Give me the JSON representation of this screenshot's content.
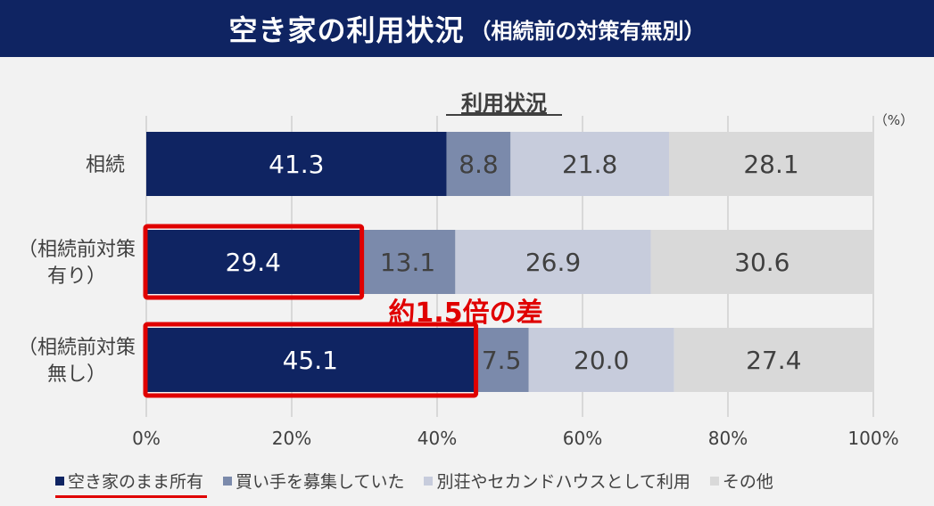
{
  "header": {
    "title": "空き家の利用状況",
    "subtitle": "（相続前の対策有無別）"
  },
  "chart_data": {
    "type": "bar",
    "orientation": "horizontal-stacked-100",
    "title": "利用状況",
    "unit_label": "（%）",
    "categories": [
      [
        "相続"
      ],
      [
        "（相続前対策",
        "有り）"
      ],
      [
        "（相続前対策",
        "無し）"
      ]
    ],
    "series": [
      {
        "name": "空き家のまま所有",
        "color": "#0f2462",
        "values": [
          41.3,
          29.4,
          45.1
        ],
        "labels": [
          "41.3",
          "29.4",
          "45.1"
        ],
        "label_color": "#ffffff"
      },
      {
        "name": "買い手を募集していた",
        "color": "#7b8aab",
        "values": [
          8.8,
          13.1,
          7.5
        ],
        "labels": [
          "8.8",
          "13.1",
          "7.5"
        ],
        "label_color": "#404040"
      },
      {
        "name": "別荘やセカンドハウスとして利用",
        "color": "#c7ccdc",
        "values": [
          21.8,
          26.9,
          20.0
        ],
        "labels": [
          "21.8",
          "26.9",
          "20.0"
        ],
        "label_color": "#404040"
      },
      {
        "name": "その他",
        "color": "#d9d9d9",
        "values": [
          28.1,
          30.6,
          27.4
        ],
        "labels": [
          "28.1",
          "30.6",
          "27.4"
        ],
        "label_color": "#404040"
      }
    ],
    "xlim": [
      0,
      100
    ],
    "x_ticks": [
      "0%",
      "20%",
      "40%",
      "60%",
      "80%",
      "100%"
    ],
    "grid": true,
    "legend_position": "bottom",
    "annotation": {
      "text": "約1.5倍の差",
      "color": "#e00000",
      "highlighted_series": "空き家のまま所有",
      "highlighted_categories": [
        1,
        2
      ]
    }
  }
}
